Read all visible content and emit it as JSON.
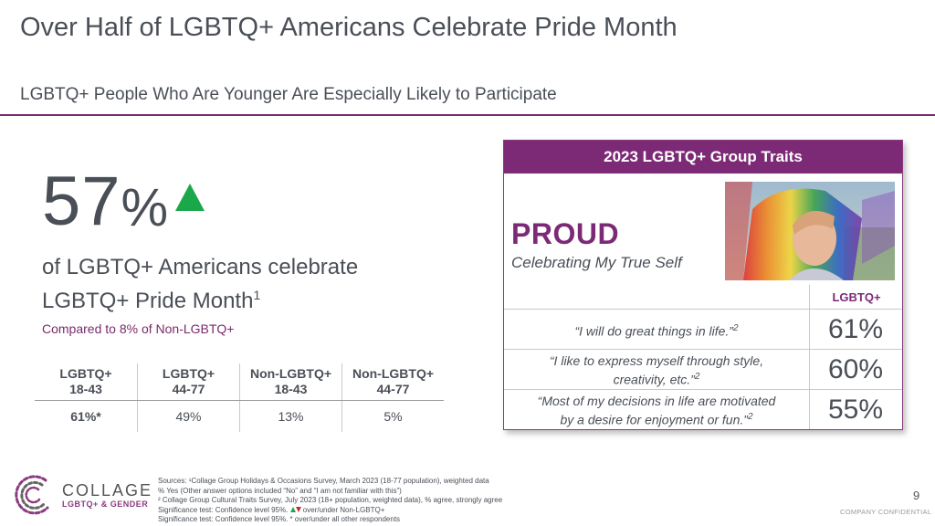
{
  "header": {
    "title": "Over Half of LGBTQ+ Americans Celebrate Pride Month",
    "subtitle": "LGBTQ+ People Who Are Younger Are Especially Likely to Participate"
  },
  "stat": {
    "value": "57",
    "unit": "%",
    "desc_line1": "of LGBTQ+ Americans celebrate",
    "desc_line2": "LGBTQ+ Pride Month",
    "desc_sup": "1",
    "compare": "Compared to 8% of Non-LGBTQ+",
    "indicator_color": "#1aa84a"
  },
  "segments": {
    "headers": [
      {
        "line1": "LGBTQ+",
        "line2": "18-43"
      },
      {
        "line1": "LGBTQ+",
        "line2": "44-77"
      },
      {
        "line1": "Non-LGBTQ+",
        "line2": "18-43"
      },
      {
        "line1": "Non-LGBTQ+",
        "line2": "44-77"
      }
    ],
    "values": [
      "61%*",
      "49%",
      "13%",
      "5%"
    ]
  },
  "panel": {
    "title": "2023 LGBTQ+ Group Traits",
    "trait": "PROUD",
    "trait_sub": "Celebrating My True Self",
    "column_label": "LGBTQ+",
    "rows": [
      {
        "line1": "“I will do great things in life.”",
        "line2": "",
        "sup": "2",
        "value": "61%"
      },
      {
        "line1": "“I like to express myself through style,",
        "line2": "creativity, etc.”",
        "sup": "2",
        "value": "60%"
      },
      {
        "line1": "“Most of my decisions in life are motivated",
        "line2": "by a desire for enjoyment or fun.”",
        "sup": "2",
        "value": "55%"
      }
    ],
    "accent_color": "#7d2a76"
  },
  "footer": {
    "logo_name": "COLLAGE",
    "logo_sub": "LGBTQ+ & GENDER",
    "sources": [
      "Sources: ¹Collage Group Holidays & Occasions Survey, March 2023 (18-77 population), weighted data",
      "% Yes (Other answer options included “No” and “I am not familiar with this”)",
      "² Collage Group Cultural Traits Survey, July 2023 (18+ population, weighted data), % agree, strongly agree"
    ],
    "sig1_prefix": "Significance test: Confidence level 95%.",
    "sig1_suffix": "over/under Non-LGBTQ+",
    "sig2": "Significance test: Confidence level 95%. * over/under all other respondents",
    "page_number": "9",
    "confidential": "COMPANY CONFIDENTIAL"
  }
}
